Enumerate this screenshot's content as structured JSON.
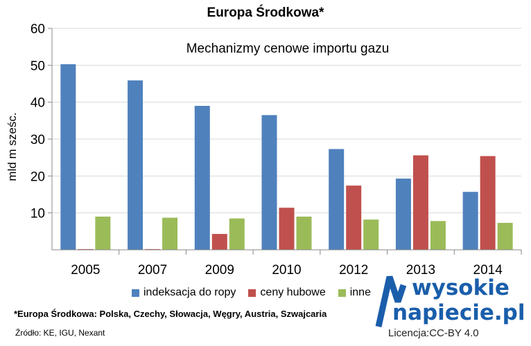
{
  "chart_data": {
    "type": "bar",
    "title": "Europa Środkowa*",
    "subtitle": "Mechanizmy cenowe importu gazu",
    "ylabel": "mld m sześc.",
    "xlabel": "",
    "ylim": [
      0,
      60
    ],
    "yticks": [
      10,
      20,
      30,
      40,
      50,
      60
    ],
    "grid": true,
    "legend_position": "bottom",
    "categories": [
      "2005",
      "2007",
      "2009",
      "2010",
      "2012",
      "2013",
      "2014"
    ],
    "series": [
      {
        "name": "indeksacja do ropy",
        "color": "#4f81bd",
        "values": [
          50.3,
          45.9,
          39.0,
          36.5,
          27.3,
          19.3,
          15.7
        ]
      },
      {
        "name": "ceny hubowe",
        "color": "#c0504d",
        "values": [
          0.2,
          0.2,
          4.3,
          11.4,
          17.4,
          25.6,
          25.4
        ]
      },
      {
        "name": "inne",
        "color": "#9bbb59",
        "values": [
          9.0,
          8.7,
          8.5,
          9.0,
          8.2,
          7.8,
          7.3
        ]
      }
    ]
  },
  "footnote": "*Europa Środkowa: Polska, Czechy, Słowacja, Węgry, Austria, Szwajcaria",
  "source": "Źródło: KE, IGU, Nexant",
  "logo": {
    "line1": "wysokie",
    "line2": "napiecie.pl"
  },
  "license": "Licencja:CC-BY 4.0"
}
